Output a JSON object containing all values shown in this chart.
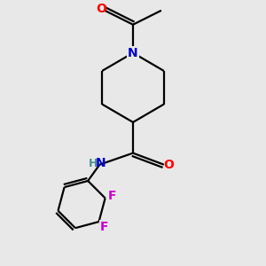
{
  "background_color": "#e8e8e8",
  "atom_colors": {
    "N": "#0000cd",
    "O": "#ff0000",
    "F": "#cc00cc",
    "C": "#000000",
    "H": "#4a9090"
  },
  "bond_color": "#000000",
  "bond_lw": 1.6,
  "font_size": 10,
  "fig_size": [
    3.0,
    3.0
  ],
  "dpi": 100
}
